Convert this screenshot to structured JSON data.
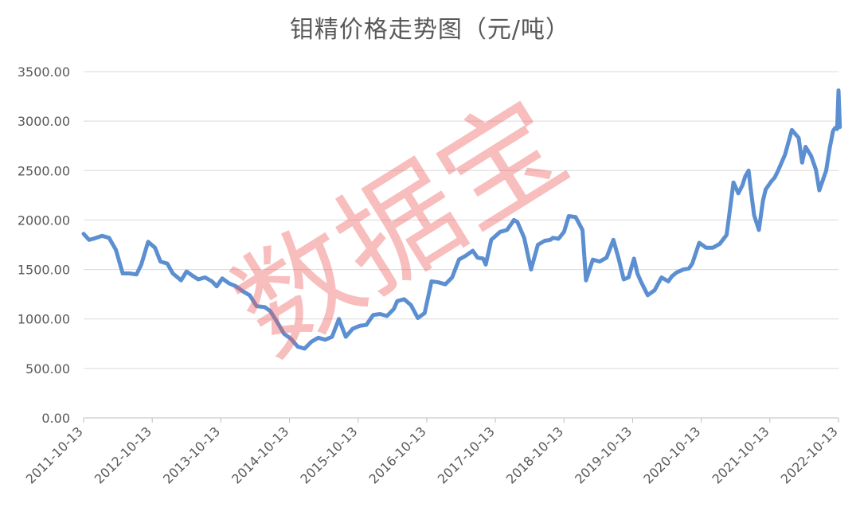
{
  "chart_data": {
    "type": "line",
    "title": "钼精价格走势图（元/吨）",
    "xlabel": "",
    "ylabel": "",
    "ylim": [
      0,
      3500
    ],
    "yticks": [
      "0.00",
      "500.00",
      "1000.00",
      "1500.00",
      "2000.00",
      "2500.00",
      "3000.00",
      "3500.00"
    ],
    "xticks": [
      "2011-10-13",
      "2012-10-13",
      "2013-10-13",
      "2014-10-13",
      "2015-10-13",
      "2016-10-13",
      "2017-10-13",
      "2018-10-13",
      "2019-10-13",
      "2020-10-13",
      "2021-10-13",
      "2022-10-13"
    ],
    "grid": true,
    "legend": "none",
    "line_color": "#5b8fd1",
    "series": [
      {
        "x": [
          2011.78,
          2011.86,
          2011.92,
          2012.05,
          2012.15,
          2012.25,
          2012.35,
          2012.45,
          2012.55,
          2012.62,
          2012.72,
          2012.82,
          2012.9,
          2013.0,
          2013.08,
          2013.2,
          2013.28,
          2013.36,
          2013.45,
          2013.55,
          2013.65,
          2013.72,
          2013.8,
          2013.9,
          2014.0,
          2014.1,
          2014.2,
          2014.3,
          2014.42,
          2014.5,
          2014.6,
          2014.7,
          2014.8,
          2014.9,
          2015.0,
          2015.1,
          2015.2,
          2015.3,
          2015.4,
          2015.5,
          2015.6,
          2015.7,
          2015.8,
          2015.9,
          2016.0,
          2016.1,
          2016.2,
          2016.3,
          2016.35,
          2016.45,
          2016.55,
          2016.65,
          2016.75,
          2016.85,
          2016.95,
          2017.05,
          2017.15,
          2017.25,
          2017.35,
          2017.45,
          2017.52,
          2017.6,
          2017.64,
          2017.72,
          2017.85,
          2017.95,
          2018.05,
          2018.1,
          2018.2,
          2018.3,
          2018.4,
          2018.5,
          2018.58,
          2018.62,
          2018.7,
          2018.78,
          2018.85,
          2018.95,
          2019.05,
          2019.1,
          2019.2,
          2019.3,
          2019.4,
          2019.5,
          2019.58,
          2019.65,
          2019.72,
          2019.8,
          2019.85,
          2019.9,
          2020.0,
          2020.1,
          2020.2,
          2020.3,
          2020.35,
          2020.42,
          2020.52,
          2020.6,
          2020.65,
          2020.75,
          2020.85,
          2020.95,
          2021.05,
          2021.15,
          2021.25,
          2021.32,
          2021.38,
          2021.42,
          2021.47,
          2021.5,
          2021.55,
          2021.62,
          2021.68,
          2021.72,
          2021.8,
          2021.85,
          2021.9,
          2022.0,
          2022.1,
          2022.2,
          2022.25,
          2022.3,
          2022.38,
          2022.45,
          2022.5,
          2022.6,
          2022.65,
          2022.7,
          2022.73,
          2022.76,
          2022.78,
          2022.8
        ],
        "values": [
          1860,
          1800,
          1810,
          1840,
          1820,
          1700,
          1460,
          1460,
          1450,
          1550,
          1780,
          1720,
          1580,
          1560,
          1460,
          1390,
          1480,
          1440,
          1400,
          1420,
          1380,
          1330,
          1410,
          1360,
          1330,
          1280,
          1240,
          1130,
          1120,
          1080,
          970,
          850,
          800,
          720,
          700,
          770,
          810,
          790,
          820,
          1000,
          820,
          900,
          930,
          940,
          1040,
          1050,
          1030,
          1100,
          1180,
          1200,
          1140,
          1010,
          1060,
          1380,
          1370,
          1350,
          1420,
          1600,
          1640,
          1690,
          1620,
          1610,
          1550,
          1800,
          1880,
          1900,
          2000,
          1980,
          1820,
          1500,
          1750,
          1790,
          1800,
          1820,
          1810,
          1880,
          2040,
          2030,
          1900,
          1390,
          1600,
          1580,
          1620,
          1800,
          1600,
          1400,
          1420,
          1610,
          1460,
          1380,
          1240,
          1290,
          1420,
          1380,
          1430,
          1470,
          1500,
          1510,
          1560,
          1770,
          1720,
          1720,
          1760,
          1850,
          2380,
          2270,
          2350,
          2440,
          2500,
          2320,
          2050,
          1900,
          2200,
          2310,
          2390,
          2430,
          2500,
          2660,
          2910,
          2830,
          2580,
          2740,
          2650,
          2510,
          2300,
          2500,
          2720,
          2900,
          2930,
          2920,
          3310,
          2940
        ]
      }
    ]
  },
  "watermark_text": "数据宝"
}
